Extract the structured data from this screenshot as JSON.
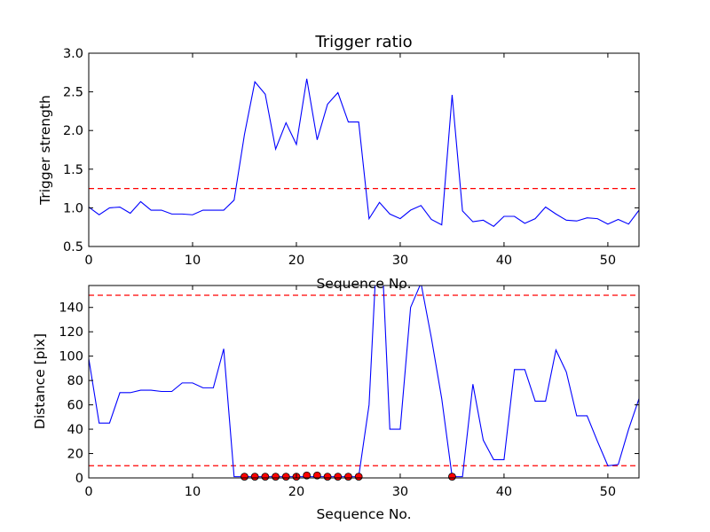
{
  "chart_data": [
    {
      "type": "line",
      "title": "Trigger ratio",
      "xlabel": "Sequence No.",
      "ylabel": "Trigger strength",
      "xlim": [
        0,
        53
      ],
      "ylim": [
        0.5,
        3.0
      ],
      "xticks": [
        0,
        10,
        20,
        30,
        40,
        50
      ],
      "yticks": [
        0.5,
        1.0,
        1.5,
        2.0,
        2.5,
        3.0
      ],
      "xtick_labels": [
        "0",
        "10",
        "20",
        "30",
        "40",
        "50"
      ],
      "ytick_labels": [
        "0.5",
        "1.0",
        "1.5",
        "2.0",
        "2.5",
        "3.0"
      ],
      "grid": false,
      "series": [
        {
          "color": "#0000ff",
          "x": [
            0,
            1,
            2,
            3,
            4,
            5,
            6,
            7,
            8,
            9,
            10,
            11,
            12,
            13,
            14,
            15,
            16,
            17,
            18,
            19,
            20,
            21,
            22,
            23,
            24,
            25,
            26,
            27,
            28,
            29,
            30,
            31,
            32,
            33,
            34,
            35,
            36,
            37,
            38,
            39,
            40,
            41,
            42,
            43,
            44,
            45,
            46,
            47,
            48,
            49,
            50,
            51,
            52,
            53
          ],
          "values": [
            1.01,
            0.91,
            1.0,
            1.01,
            0.93,
            1.08,
            0.97,
            0.97,
            0.92,
            0.92,
            0.91,
            0.97,
            0.97,
            0.97,
            1.1,
            1.95,
            2.63,
            2.47,
            1.76,
            2.1,
            1.82,
            2.67,
            1.88,
            2.34,
            2.49,
            2.11,
            2.11,
            0.86,
            1.07,
            0.92,
            0.86,
            0.97,
            1.03,
            0.85,
            0.78,
            2.46,
            0.96,
            0.82,
            0.84,
            0.76,
            0.89,
            0.89,
            0.8,
            0.86,
            1.01,
            0.92,
            0.84,
            0.83,
            0.87,
            0.86,
            0.79,
            0.85,
            0.79,
            0.97
          ]
        }
      ],
      "thresholds": [
        {
          "y": 1.25,
          "color": "#ff0000",
          "style": "dashed"
        }
      ]
    },
    {
      "type": "line",
      "title": "",
      "xlabel": "Sequence No.",
      "ylabel": "Distance [pix]",
      "xlim": [
        0,
        53
      ],
      "ylim": [
        0,
        158
      ],
      "xticks": [
        0,
        10,
        20,
        30,
        40,
        50
      ],
      "yticks": [
        0,
        20,
        40,
        60,
        80,
        100,
        120,
        140
      ],
      "xtick_labels": [
        "0",
        "10",
        "20",
        "30",
        "40",
        "50"
      ],
      "ytick_labels": [
        "0",
        "20",
        "40",
        "60",
        "80",
        "100",
        "120",
        "140"
      ],
      "grid": false,
      "series": [
        {
          "color": "#0000ff",
          "x": [
            0,
            1,
            2,
            3,
            4,
            5,
            6,
            7,
            8,
            9,
            10,
            11,
            12,
            13,
            14,
            15,
            16,
            17,
            18,
            19,
            20,
            21,
            22,
            23,
            24,
            25,
            26,
            27,
            28,
            29,
            30,
            31,
            32,
            33,
            34,
            35,
            36,
            37,
            38,
            39,
            40,
            41,
            42,
            43,
            44,
            45,
            46,
            47,
            48,
            49,
            50,
            51,
            52,
            53
          ],
          "values": [
            98,
            45,
            45,
            70,
            70,
            72,
            72,
            71,
            71,
            78,
            78,
            74,
            74,
            106,
            1,
            1,
            1,
            1,
            1,
            1,
            1,
            1,
            1,
            1,
            1,
            1,
            1,
            60,
            230,
            40,
            40,
            140,
            160,
            115,
            65,
            1,
            1,
            77,
            31,
            15,
            15,
            89,
            89,
            63,
            63,
            105,
            87,
            51,
            51,
            30,
            10,
            11,
            40,
            65
          ]
        }
      ],
      "markers": {
        "color": "#ff0000",
        "x": [
          15,
          16,
          17,
          18,
          19,
          20,
          21,
          22,
          23,
          24,
          25,
          26,
          35
        ],
        "values": [
          1,
          1,
          1,
          1,
          1,
          1,
          2,
          2,
          1,
          1,
          1,
          1,
          1
        ]
      },
      "thresholds": [
        {
          "y": 150,
          "color": "#ff0000",
          "style": "dashed"
        },
        {
          "y": 10,
          "color": "#ff0000",
          "style": "dashed"
        }
      ]
    }
  ]
}
